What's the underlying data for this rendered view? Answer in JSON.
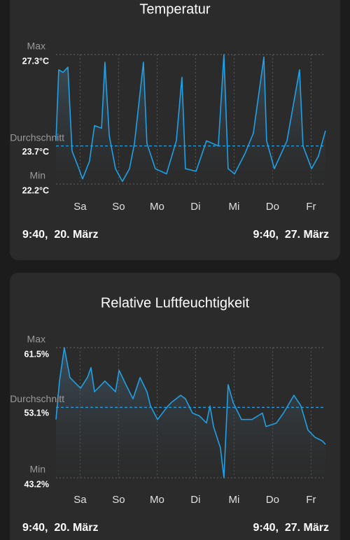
{
  "chart_data": [
    {
      "type": "line",
      "title": "Temperatur",
      "x": [
        0,
        1.7,
        4.4,
        7.4,
        10,
        13.1,
        16.6,
        20.9,
        24,
        28.4,
        30.5,
        33.2,
        37.1,
        41.4,
        45.8,
        48.9,
        54.5,
        56.7,
        61.9,
        68.9,
        75,
        78.5,
        80.7,
        87.3,
        93.8,
        101.2,
        104.7,
        107.3,
        111.3,
        117.8,
        123,
        129.6,
        131.3,
        136.1,
        144,
        151.8,
        154,
        159.3,
        163.6,
        168
      ],
      "series": [
        {
          "color": "#1ea1e6",
          "values": [
            23.9,
            26.7,
            26.6,
            26.8,
            23.5,
            23.0,
            22.4,
            23.1,
            24.5,
            24.4,
            27.0,
            24.1,
            22.8,
            22.3,
            22.8,
            23.8,
            27.0,
            23.8,
            22.8,
            22.6,
            23.9,
            26.4,
            22.8,
            22.7,
            23.9,
            23.7,
            27.3,
            22.8,
            22.6,
            23.4,
            24.2,
            27.2,
            23.9,
            22.8,
            23.9,
            26.7,
            23.7,
            22.8,
            23.3,
            24.3
          ]
        }
      ],
      "xlim": [
        0,
        168
      ],
      "xticks": [
        {
          "value": 15,
          "label": "Sa"
        },
        {
          "value": 39,
          "label": "So"
        },
        {
          "value": 63,
          "label": "Mo"
        },
        {
          "value": 87,
          "label": "Di"
        },
        {
          "value": 111,
          "label": "Mi"
        },
        {
          "value": 135,
          "label": "Do"
        },
        {
          "value": 159,
          "label": "Fr"
        }
      ],
      "ylim": [
        22.2,
        27.3
      ],
      "yticks": [
        {
          "value": 27.3,
          "label": "27.3°C"
        },
        {
          "value": 22.2,
          "label": "22.2°C"
        }
      ],
      "ytick_captions": [
        "Max",
        "Min"
      ],
      "average": {
        "value": 23.7,
        "label": "23.7°C",
        "caption": "Durchschnitt"
      },
      "x_start_label": "9:40,  20. März",
      "x_end_label": "9:40,  27. März"
    },
    {
      "type": "line",
      "title": "Relative Luftfeuchtigkeit",
      "x": [
        0,
        2.2,
        5.2,
        8.7,
        13.1,
        15.3,
        19.6,
        21.8,
        24,
        30.5,
        37.1,
        39.3,
        43.6,
        48,
        52.4,
        56.7,
        58.9,
        63.3,
        69.8,
        72,
        77.7,
        80.7,
        85.1,
        89.4,
        93.8,
        96,
        98.2,
        102.5,
        104.7,
        107.3,
        110.4,
        115.6,
        122.2,
        128.7,
        130.9,
        137.4,
        141.8,
        148.3,
        152.7,
        157.1,
        161.4,
        165.8,
        168
      ],
      "series": [
        {
          "color": "#1ea1e6",
          "values": [
            51.4,
            56.8,
            61.5,
            57.3,
            56.3,
            55.8,
            57.3,
            58.7,
            55.3,
            56.8,
            55.3,
            58.3,
            56.3,
            54.3,
            57.3,
            55.3,
            53.3,
            51.4,
            53.3,
            53.8,
            54.8,
            54.3,
            52.3,
            51.9,
            50.9,
            53.3,
            50.4,
            47.4,
            43.2,
            56.3,
            53.8,
            51.4,
            51.4,
            52.3,
            50.4,
            50.9,
            52.3,
            54.8,
            53.3,
            49.9,
            48.9,
            48.4,
            47.9
          ]
        }
      ],
      "xlim": [
        0,
        168
      ],
      "xticks": [
        {
          "value": 15,
          "label": "Sa"
        },
        {
          "value": 39,
          "label": "So"
        },
        {
          "value": 63,
          "label": "Mo"
        },
        {
          "value": 87,
          "label": "Di"
        },
        {
          "value": 111,
          "label": "Mi"
        },
        {
          "value": 135,
          "label": "Do"
        },
        {
          "value": 159,
          "label": "Fr"
        }
      ],
      "ylim": [
        43.2,
        61.5
      ],
      "yticks": [
        {
          "value": 61.5,
          "label": "61.5%"
        },
        {
          "value": 43.2,
          "label": "43.2%"
        }
      ],
      "ytick_captions": [
        "Max",
        "Min"
      ],
      "average": {
        "value": 53.1,
        "label": "53.1%",
        "caption": "Durchschnitt"
      },
      "x_start_label": "9:40,  20. März",
      "x_end_label": "9:40,  27. März"
    }
  ]
}
